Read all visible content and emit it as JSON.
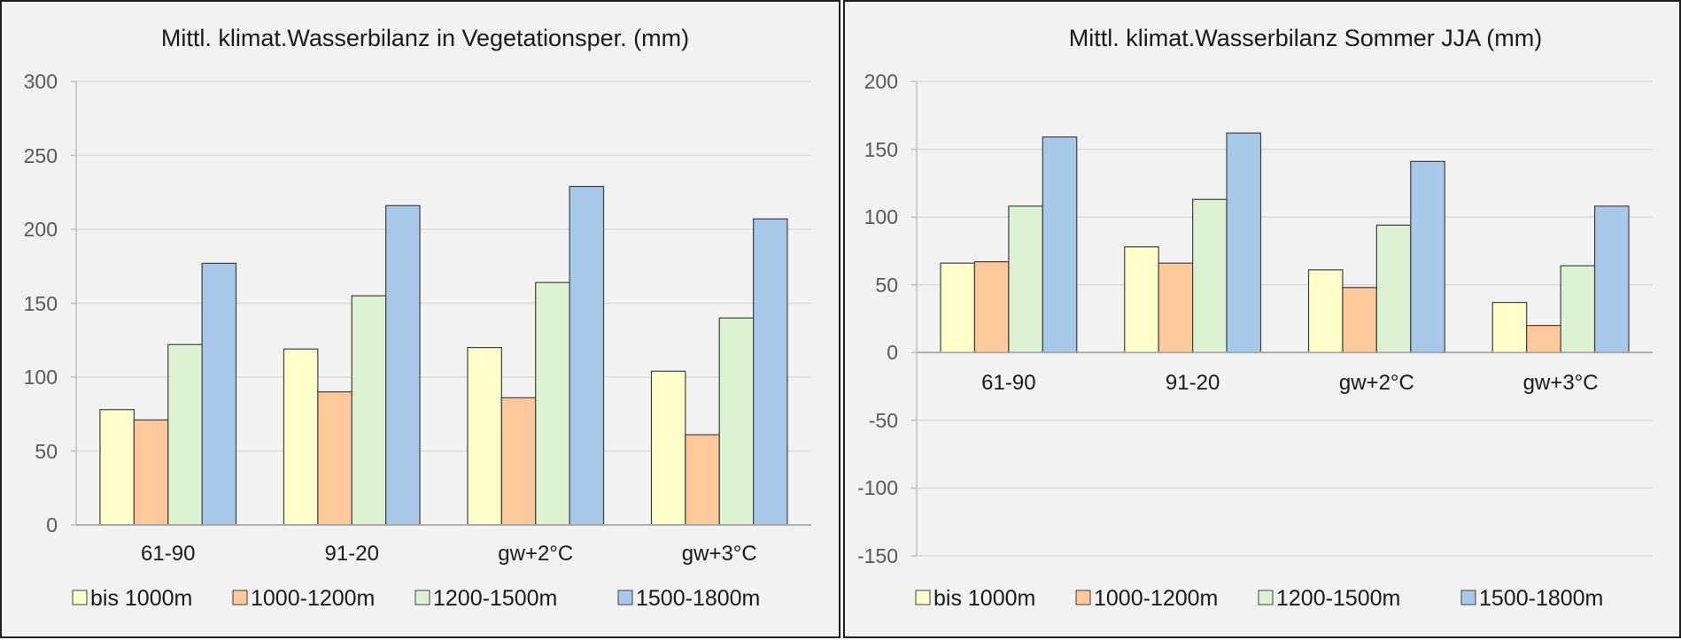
{
  "charts": [
    {
      "title": "Mittl. klimat.Wasserbilanz in Vegetationsper. (mm)",
      "yticks": [
        "300",
        "250",
        "200",
        "150",
        "100",
        "50",
        "0"
      ],
      "legend": [
        "bis 1000m",
        "1000-1200m",
        "1200-1500m",
        "1500-1800m"
      ]
    },
    {
      "title": "Mittl. klimat.Wasserbilanz Sommer JJA (mm)",
      "yticks": [
        "200",
        "150",
        "100",
        "50",
        "0",
        "-50",
        "-100",
        "-150"
      ],
      "legend": [
        "bis 1000m",
        "1000-1200m",
        "1200-1500m",
        "1500-1800m"
      ]
    }
  ],
  "chart_data": [
    {
      "type": "bar",
      "title": "Mittl. klimat.Wasserbilanz in Vegetationsper. (mm)",
      "xlabel": "",
      "ylabel": "",
      "categories": [
        "61-90",
        "91-20",
        "gw+2°C",
        "gw+3°C"
      ],
      "series": [
        {
          "name": "bis 1000m",
          "values": [
            78,
            119,
            120,
            104
          ],
          "color": "#ffffcc"
        },
        {
          "name": "1000-1200m",
          "values": [
            71,
            90,
            86,
            61
          ],
          "color": "#fcc89c"
        },
        {
          "name": "1200-1500m",
          "values": [
            122,
            155,
            164,
            140
          ],
          "color": "#dcf2d2"
        },
        {
          "name": "1500-1800m",
          "values": [
            177,
            216,
            229,
            207
          ],
          "color": "#a8c8ea"
        }
      ],
      "ylim": [
        0,
        300
      ],
      "ytick_step": 50,
      "grid": true,
      "legend_position": "bottom"
    },
    {
      "type": "bar",
      "title": "Mittl. klimat.Wasserbilanz Sommer JJA (mm)",
      "xlabel": "",
      "ylabel": "",
      "categories": [
        "61-90",
        "91-20",
        "gw+2°C",
        "gw+3°C"
      ],
      "series": [
        {
          "name": "bis 1000m",
          "values": [
            66,
            78,
            61,
            37
          ],
          "color": "#ffffcc"
        },
        {
          "name": "1000-1200m",
          "values": [
            67,
            66,
            48,
            20
          ],
          "color": "#fcc89c"
        },
        {
          "name": "1200-1500m",
          "values": [
            108,
            113,
            94,
            64
          ],
          "color": "#dcf2d2"
        },
        {
          "name": "1500-1800m",
          "values": [
            159,
            162,
            141,
            108
          ],
          "color": "#a8c8ea"
        }
      ],
      "ylim": [
        -150,
        200
      ],
      "ytick_step": 50,
      "grid": true,
      "legend_position": "bottom"
    }
  ]
}
